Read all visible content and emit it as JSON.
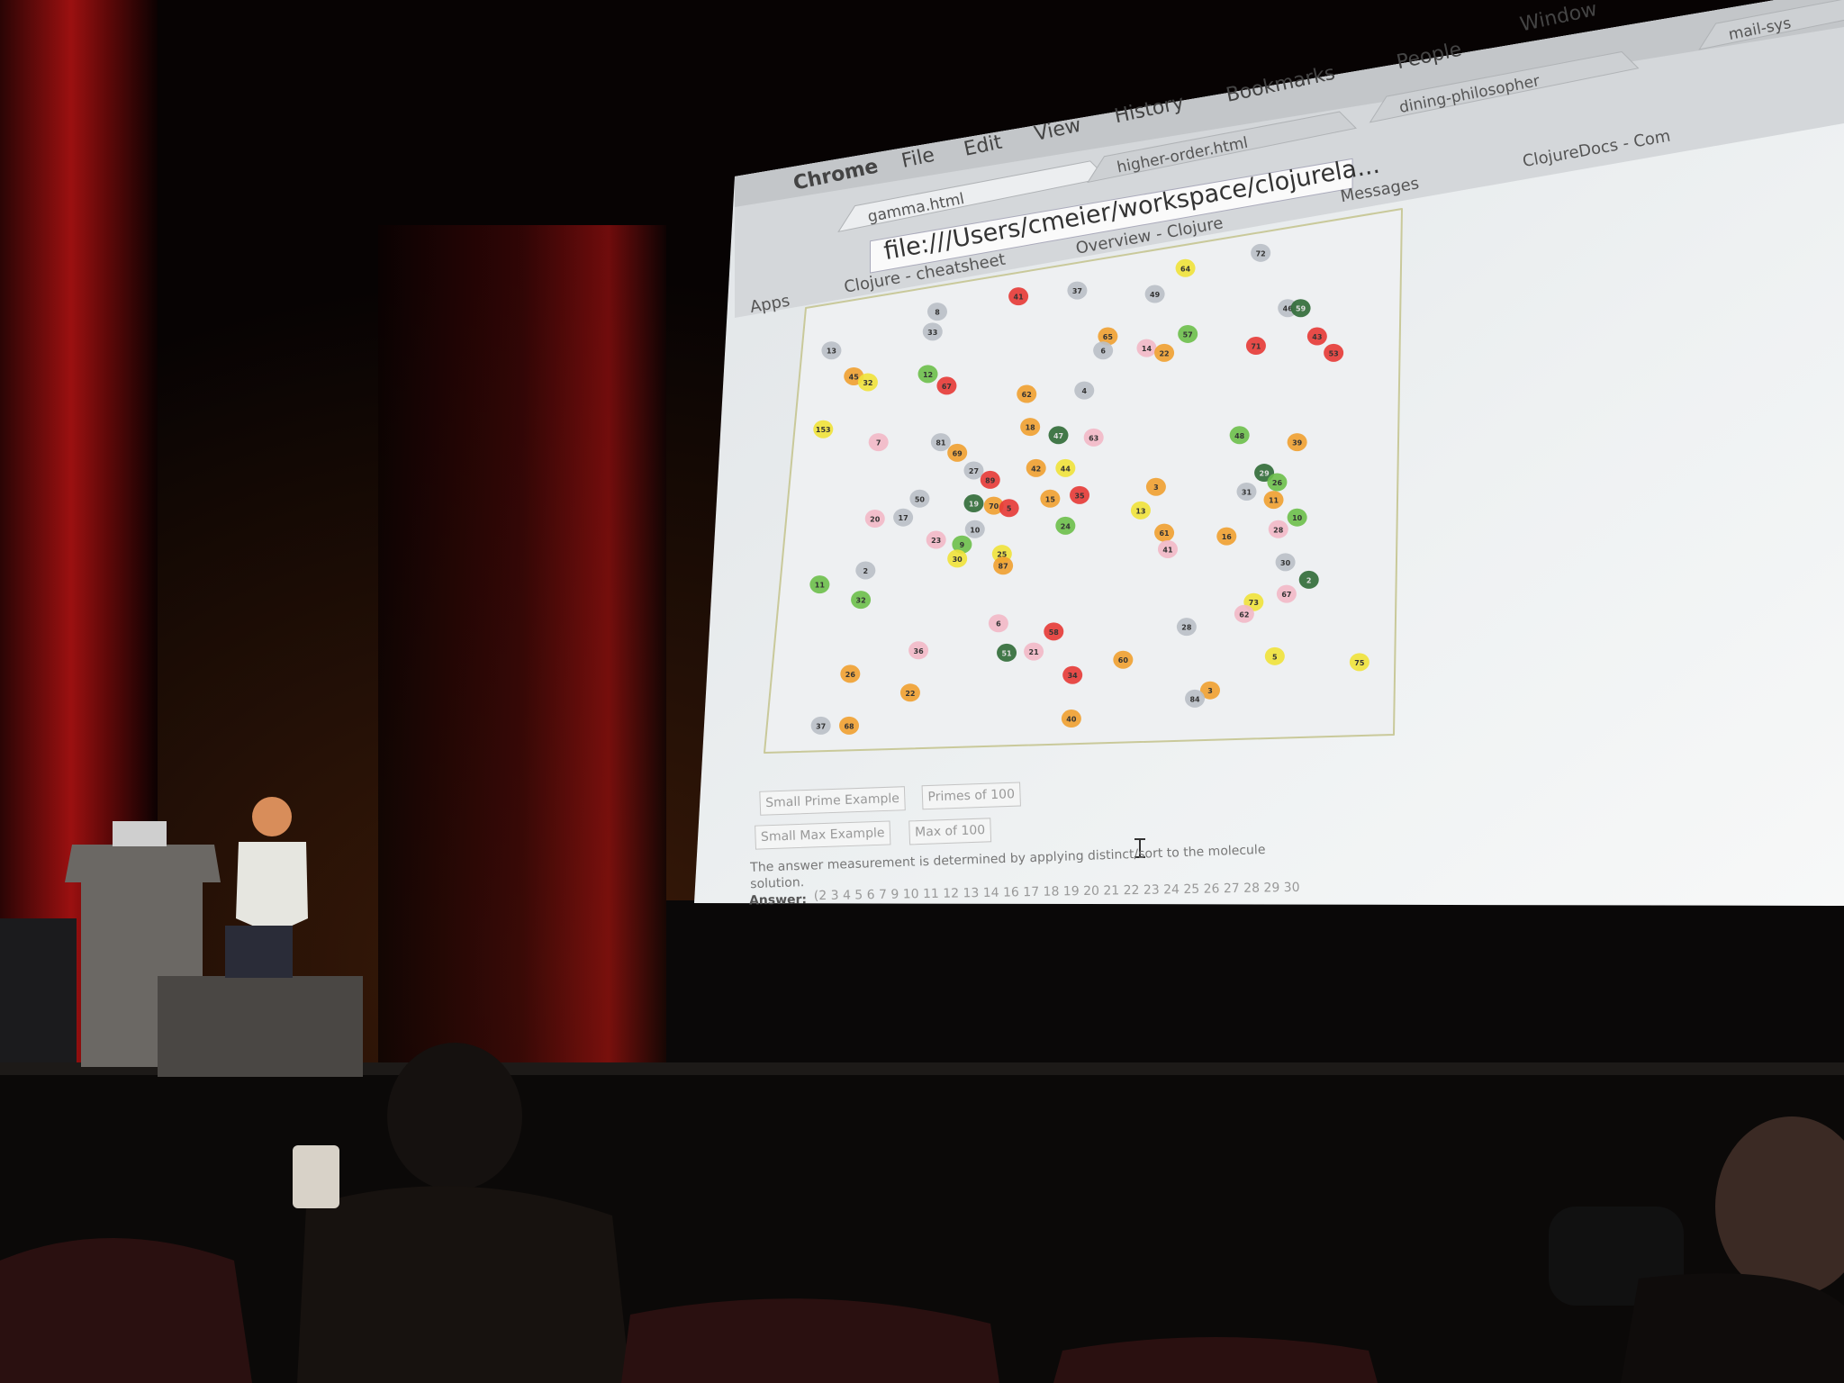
{
  "browser": {
    "menu": [
      "Chrome",
      "File",
      "Edit",
      "View",
      "History",
      "Bookmarks",
      "People",
      "Window"
    ],
    "tabs": [
      "gamma.html",
      "higher-order.html",
      "dining-philosopher",
      "mail-sys"
    ],
    "url": "file:///Users/cmeier/workspace/clojurela...",
    "bookmarks": [
      "Apps",
      "Clojure - cheatsheet",
      "Overview - Clojure",
      "Messages",
      "ClojureDocs - Com"
    ]
  },
  "page": {
    "molecules": [
      {
        "label": "64",
        "color": "#efe23a"
      },
      {
        "label": "72",
        "color": "#b9bfc7"
      },
      {
        "label": "37",
        "color": "#b9bfc7"
      },
      {
        "label": "49",
        "color": "#b9bfc7"
      },
      {
        "label": "41",
        "color": "#e53935"
      },
      {
        "label": "8",
        "color": "#b9bfc7"
      },
      {
        "label": "33",
        "color": "#b9bfc7"
      },
      {
        "label": "46",
        "color": "#b9bfc7"
      },
      {
        "label": "59",
        "color": "#2f6a36"
      },
      {
        "label": "57",
        "color": "#6cbf4a"
      },
      {
        "label": "65",
        "color": "#f0a030"
      },
      {
        "label": "6",
        "color": "#b9bfc7"
      },
      {
        "label": "14",
        "color": "#f2b8c6"
      },
      {
        "label": "22",
        "color": "#f0a030"
      },
      {
        "label": "71",
        "color": "#e53935"
      },
      {
        "label": "43",
        "color": "#e53935"
      },
      {
        "label": "53",
        "color": "#e53935"
      },
      {
        "label": "13",
        "color": "#b9bfc7"
      },
      {
        "label": "45",
        "color": "#f0a030"
      },
      {
        "label": "32",
        "color": "#efe23a"
      },
      {
        "label": "12",
        "color": "#6cbf4a"
      },
      {
        "label": "67",
        "color": "#e53935"
      },
      {
        "label": "62",
        "color": "#f0a030"
      },
      {
        "label": "4",
        "color": "#b9bfc7"
      },
      {
        "label": "153",
        "color": "#efe23a"
      },
      {
        "label": "18",
        "color": "#f0a030"
      },
      {
        "label": "47",
        "color": "#2f6a36"
      },
      {
        "label": "63",
        "color": "#f2b8c6"
      },
      {
        "label": "7",
        "color": "#f2b8c6"
      },
      {
        "label": "81",
        "color": "#b9bfc7"
      },
      {
        "label": "69",
        "color": "#f0a030"
      },
      {
        "label": "48",
        "color": "#6cbf4a"
      },
      {
        "label": "39",
        "color": "#f0a030"
      },
      {
        "label": "27",
        "color": "#b9bfc7"
      },
      {
        "label": "42",
        "color": "#f0a030"
      },
      {
        "label": "44",
        "color": "#efe23a"
      },
      {
        "label": "89",
        "color": "#e53935"
      },
      {
        "label": "29",
        "color": "#2f6a36"
      },
      {
        "label": "26",
        "color": "#6cbf4a"
      },
      {
        "label": "3",
        "color": "#f0a030"
      },
      {
        "label": "31",
        "color": "#b9bfc7"
      },
      {
        "label": "11",
        "color": "#f0a030"
      },
      {
        "label": "50",
        "color": "#b9bfc7"
      },
      {
        "label": "19",
        "color": "#2f6a36"
      },
      {
        "label": "70",
        "color": "#f0a030"
      },
      {
        "label": "5",
        "color": "#e53935"
      },
      {
        "label": "15",
        "color": "#f0a030"
      },
      {
        "label": "35",
        "color": "#e53935"
      },
      {
        "label": "13",
        "color": "#efe23a"
      },
      {
        "label": "20",
        "color": "#f2b8c6"
      },
      {
        "label": "17",
        "color": "#b9bfc7"
      },
      {
        "label": "10",
        "color": "#b9bfc7"
      },
      {
        "label": "24",
        "color": "#6cbf4a"
      },
      {
        "label": "10",
        "color": "#6cbf4a"
      },
      {
        "label": "28",
        "color": "#f2b8c6"
      },
      {
        "label": "61",
        "color": "#f0a030"
      },
      {
        "label": "16",
        "color": "#f0a030"
      },
      {
        "label": "23",
        "color": "#f2b8c6"
      },
      {
        "label": "9",
        "color": "#6cbf4a"
      },
      {
        "label": "25",
        "color": "#efe23a"
      },
      {
        "label": "41",
        "color": "#f2b8c6"
      },
      {
        "label": "30",
        "color": "#efe23a"
      },
      {
        "label": "87",
        "color": "#f0a030"
      },
      {
        "label": "30",
        "color": "#b9bfc7"
      },
      {
        "label": "2",
        "color": "#b9bfc7"
      },
      {
        "label": "11",
        "color": "#6cbf4a"
      },
      {
        "label": "32",
        "color": "#6cbf4a"
      },
      {
        "label": "2",
        "color": "#2f6a36"
      },
      {
        "label": "67",
        "color": "#f2b8c6"
      },
      {
        "label": "73",
        "color": "#efe23a"
      },
      {
        "label": "62",
        "color": "#f2b8c6"
      },
      {
        "label": "6",
        "color": "#f2b8c6"
      },
      {
        "label": "58",
        "color": "#e53935"
      },
      {
        "label": "28",
        "color": "#b9bfc7"
      },
      {
        "label": "36",
        "color": "#f2b8c6"
      },
      {
        "label": "51",
        "color": "#2f6a36"
      },
      {
        "label": "21",
        "color": "#f2b8c6"
      },
      {
        "label": "5",
        "color": "#efe23a"
      },
      {
        "label": "75",
        "color": "#efe23a"
      },
      {
        "label": "60",
        "color": "#f0a030"
      },
      {
        "label": "26",
        "color": "#f0a030"
      },
      {
        "label": "34",
        "color": "#e53935"
      },
      {
        "label": "22",
        "color": "#f0a030"
      },
      {
        "label": "3",
        "color": "#f0a030"
      },
      {
        "label": "84",
        "color": "#b9bfc7"
      },
      {
        "label": "37",
        "color": "#b9bfc7"
      },
      {
        "label": "68",
        "color": "#f0a030"
      },
      {
        "label": "40",
        "color": "#f0a030"
      }
    ],
    "buttons": [
      "Small Prime Example",
      "Primes of 100",
      "Small Max Example",
      "Max of 100"
    ],
    "description": [
      "The answer measurement is determined by applying distinct/sort to the molecule",
      "solution."
    ],
    "answer_label": "Answer:",
    "answer": "(2 3 4 5 6 7 9 10 11 12 13 14 16 17 18 19 20 21 22 23 24 25 26 27 28 29 30"
  }
}
